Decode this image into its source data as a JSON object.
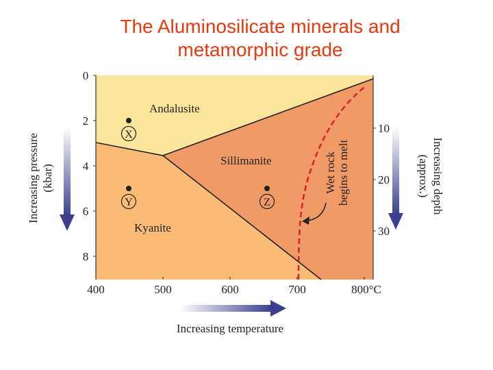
{
  "title": {
    "line1": "The Aluminosilicate minerals and",
    "line2": "metamorphic grade"
  },
  "axes": {
    "pressure_ticks": [
      "0",
      "2",
      "4",
      "6",
      "8"
    ],
    "temperature_ticks": [
      "400",
      "500",
      "600",
      "700",
      "800°C"
    ],
    "depth_ticks": [
      "10",
      "20",
      "30"
    ],
    "pressure_label_line1": "Increasing pressure",
    "pressure_label_line2": "(kbar)",
    "temperature_label": "Increasing temperature",
    "depth_label_line1": "Increasing depth",
    "depth_label_line2": "(approx.)"
  },
  "fields": {
    "andalusite": "Andalusite",
    "sillimanite": "Sillimanite",
    "kyanite": "Kyanite"
  },
  "points": {
    "x": "X",
    "y": "Y",
    "z": "Z"
  },
  "melt_annotation": {
    "line1": "Wet rock",
    "line2": "begins to melt"
  },
  "colors": {
    "title": "#e8380d",
    "andalusite_field": "#fbe59a",
    "kyanite_field": "#f9bb76",
    "sillimanite_field": "#f09a66",
    "melt_curve": "#d9202a",
    "arrow": "#3a3f8f"
  }
}
